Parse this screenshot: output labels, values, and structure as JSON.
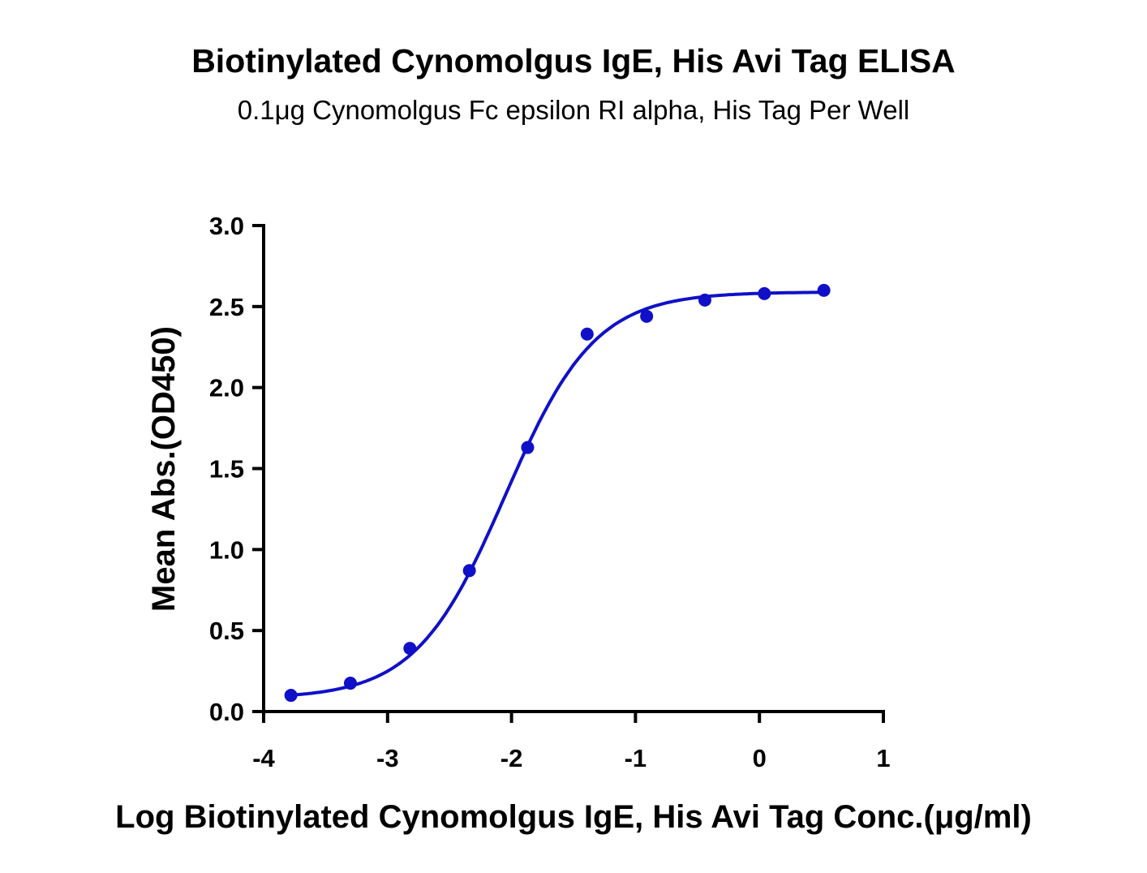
{
  "chart_data": {
    "type": "scatter",
    "title": "Biotinylated Cynomolgus IgE, His Avi Tag ELISA",
    "subtitle": "0.1μg Cynomolgus Fc epsilon RI alpha, His Tag Per Well",
    "xlabel": "Log Biotinylated Cynomolgus IgE, His Avi Tag Conc.(μg/ml)",
    "ylabel": "Mean Abs.(OD450)",
    "xlim": [
      -4,
      1
    ],
    "ylim": [
      0,
      3.0
    ],
    "xticks": [
      -4,
      -3,
      -2,
      -1,
      0,
      1
    ],
    "xtick_labels": [
      "-4",
      "-3",
      "-2",
      "-1",
      "0",
      "1"
    ],
    "yticks": [
      0,
      0.5,
      1.0,
      1.5,
      2.0,
      2.5,
      3.0
    ],
    "ytick_labels": [
      "0.0",
      "0.5",
      "1.0",
      "1.5",
      "2.0",
      "2.5",
      "3.0"
    ],
    "grid": false,
    "color": "#1010c8",
    "series": [
      {
        "name": "Mean Abs.",
        "x": [
          -3.78,
          -3.3,
          -2.82,
          -2.34,
          -1.87,
          -1.39,
          -0.91,
          -0.44,
          0.04,
          0.52
        ],
        "y": [
          0.1,
          0.175,
          0.39,
          0.87,
          1.63,
          2.33,
          2.44,
          2.54,
          2.58,
          2.6
        ]
      }
    ],
    "fit": {
      "model": "4PL",
      "bottom": 0.08,
      "top": 2.59,
      "logEC50": -2.05,
      "hill": 1.2
    }
  }
}
